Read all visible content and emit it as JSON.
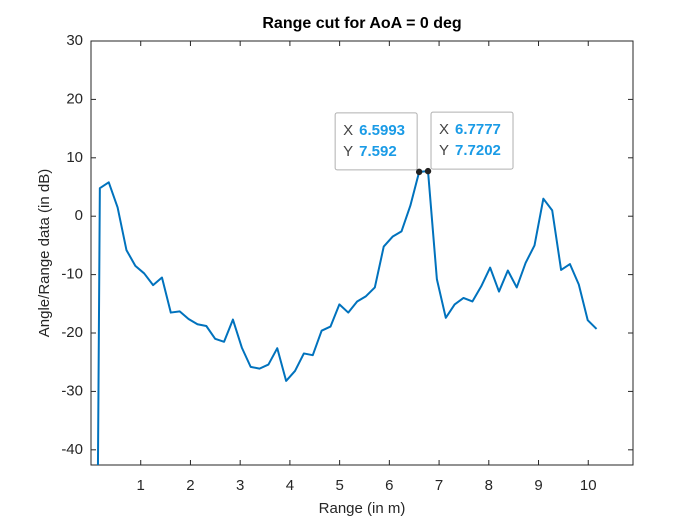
{
  "chart_data": {
    "type": "line",
    "title": "Range cut for AoA = 0 deg",
    "x_label": "Range (in m)",
    "y_label": "Angle/Range data (in dB)",
    "xlim": [
      0,
      10.9
    ],
    "ylim": [
      -42.6,
      30
    ],
    "xticks": [
      1,
      2,
      3,
      4,
      5,
      6,
      7,
      8,
      9,
      10
    ],
    "yticks": [
      -40,
      -30,
      -20,
      -10,
      0,
      10,
      20,
      30
    ],
    "series": [
      {
        "color": "#0072bd",
        "x": [
          0.14,
          0.178,
          0.357,
          0.535,
          0.713,
          0.892,
          1.07,
          1.249,
          1.427,
          1.605,
          1.784,
          1.962,
          2.141,
          2.319,
          2.497,
          2.676,
          2.854,
          3.033,
          3.211,
          3.389,
          3.568,
          3.746,
          3.924,
          4.103,
          4.281,
          4.46,
          4.638,
          4.816,
          4.995,
          5.173,
          5.352,
          5.53,
          5.708,
          5.887,
          6.065,
          6.244,
          6.422,
          6.5993,
          6.7777,
          6.956,
          7.135,
          7.313,
          7.491,
          7.67,
          7.848,
          8.027,
          8.205,
          8.383,
          8.562,
          8.74,
          8.919,
          9.097,
          9.275,
          9.454,
          9.632,
          9.81,
          9.989,
          10.167
        ],
        "values": [
          -42.6,
          4.8,
          5.8,
          1.5,
          -5.8,
          -8.5,
          -9.8,
          -11.8,
          -10.5,
          -16.5,
          -16.3,
          -17.6,
          -18.5,
          -18.8,
          -21,
          -21.5,
          -17.7,
          -22.5,
          -25.8,
          -26.1,
          -25.4,
          -22.6,
          -28.2,
          -26.5,
          -23.5,
          -23.8,
          -19.6,
          -18.9,
          -15.1,
          -16.5,
          -14.6,
          -13.7,
          -12.2,
          -5.2,
          -3.5,
          -2.6,
          1.8,
          7.592,
          7.7202,
          -10.8,
          -17.4,
          -15.1,
          -14,
          -14.6,
          -12,
          -8.8,
          -12.9,
          -9.3,
          -12.2,
          -8,
          -5,
          3,
          1,
          -9.2,
          -8.2,
          -11.7,
          -17.8,
          -19.3
        ]
      }
    ],
    "datatips": [
      {
        "x_key": "X",
        "x": 6.5993,
        "y_key": "Y",
        "y": 7.592
      },
      {
        "x_key": "X",
        "x": 6.7777,
        "y_key": "Y",
        "y": 7.7202
      }
    ]
  }
}
